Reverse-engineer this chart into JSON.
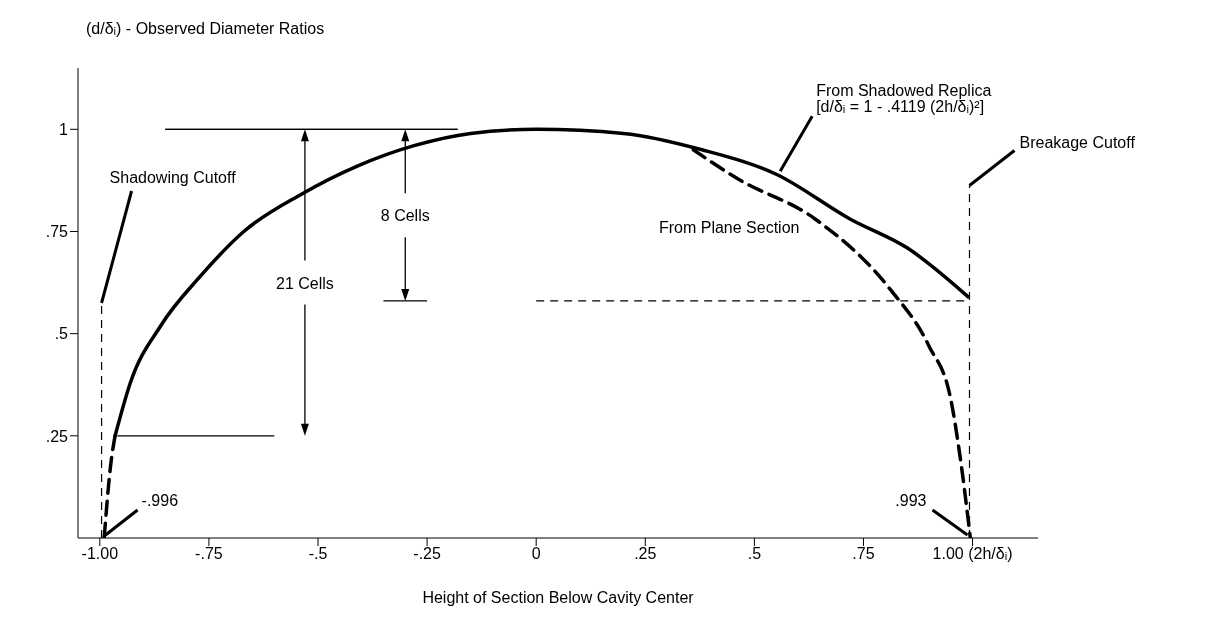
{
  "chart_data": {
    "type": "line",
    "xlabel": "Height of Section Below Cavity Center",
    "ylabel": "(d/δᵢ) - Observed Diameter Ratios",
    "xlim": [
      -1.05,
      1.15
    ],
    "ylim": [
      0,
      1.15
    ],
    "xticks": [
      {
        "value": -1,
        "label": "-1.00"
      },
      {
        "value": -0.75,
        "label": "-.75"
      },
      {
        "value": -0.5,
        "label": "-.5"
      },
      {
        "value": -0.25,
        "label": "-.25"
      },
      0,
      {
        "value": 0.25,
        "label": ".25"
      },
      {
        "value": 0.5,
        "label": ".5"
      },
      {
        "value": 0.75,
        "label": ".75"
      },
      {
        "value": 1,
        "label": "1.00 (2h/δᵢ)"
      }
    ],
    "yticks": [
      {
        "value": 0.25,
        "label": ".25"
      },
      {
        "value": 0.5,
        "label": ".5"
      },
      {
        "value": 0.75,
        "label": ".75"
      },
      1
    ],
    "marker": "none",
    "series": [
      {
        "name": "From Shadowed Replica",
        "color": "#000000",
        "line_style": "solid",
        "x": [
          -0.965,
          -0.93,
          -0.86,
          -0.77,
          -0.67,
          -0.54,
          -0.41,
          -0.28,
          -0.15,
          0,
          0.2,
          0.38,
          0.55,
          0.72,
          0.85,
          0.99
        ],
        "values": [
          0.25,
          0.38,
          0.52,
          0.64,
          0.75,
          0.84,
          0.91,
          0.96,
          0.99,
          1.0,
          0.99,
          0.95,
          0.89,
          0.78,
          0.71,
          0.59
        ]
      },
      {
        "color": "#000000",
        "line_style": "dashed",
        "x": [
          -0.965,
          -0.975,
          -0.99
        ],
        "values": [
          0.25,
          0.18,
          0
        ]
      },
      {
        "name": "From Plane Section",
        "color": "#000000",
        "line_style": "dashed",
        "x": [
          0.36,
          0.46,
          0.64,
          0.81,
          0.9,
          0.95,
          0.97,
          0.995
        ],
        "values": [
          0.95,
          0.88,
          0.78,
          0.61,
          0.47,
          0.34,
          0.21,
          0
        ]
      }
    ],
    "ref_lines": [
      {
        "axis": "x",
        "value": -0.996,
        "label": "Shadowing Cutoff",
        "line_style": "dashed"
      },
      {
        "axis": "x",
        "value": 0.993,
        "label": "Breakage Cutoff",
        "line_style": "dashed"
      },
      {
        "axis": "y",
        "value": 0.58,
        "line_style": "dashed"
      }
    ],
    "annotations": [
      {
        "text": "-.996",
        "x": -0.996,
        "y": 0
      },
      {
        "text": ".993",
        "x": 0.993,
        "y": 0
      },
      {
        "text": "[d/δᵢ = 1 - .4119 (2h/δᵢ)²]",
        "x": 0.55,
        "y": 0.89
      },
      "21 Cells",
      "8 Cells"
    ]
  }
}
